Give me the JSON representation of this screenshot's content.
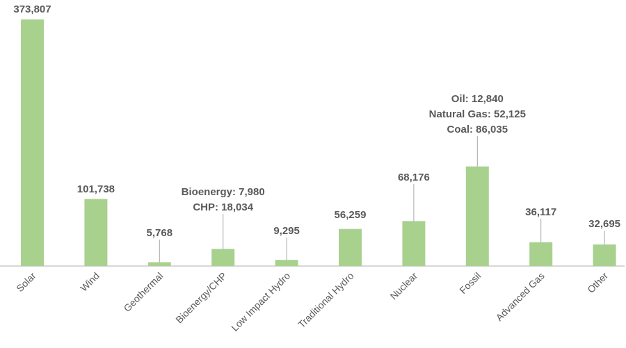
{
  "chart_data": {
    "type": "bar",
    "categories": [
      "Solar",
      "Wind",
      "Geothermal",
      "Bioenergy/CHP",
      "Low Impact Hydro",
      "Traditional Hydro",
      "Nuclear",
      "Fossil",
      "Advanced Gas",
      "Other"
    ],
    "values": [
      373807,
      101738,
      5768,
      26014,
      9295,
      56259,
      68176,
      151000,
      36117,
      32695
    ],
    "data_labels": [
      [
        "373,807"
      ],
      [
        "101,738"
      ],
      [
        "5,768"
      ],
      [
        "Bioenergy: 7,980",
        "CHP: 18,034"
      ],
      [
        "9,295"
      ],
      [
        "56,259"
      ],
      [
        "68,176"
      ],
      [
        "Oil: 12,840",
        "Natural Gas: 52,125",
        "Coal: 86,035"
      ],
      [
        "36,117"
      ],
      [
        "32,695"
      ]
    ],
    "title": "",
    "xlabel": "",
    "ylabel": "",
    "ylim": [
      0,
      380000
    ],
    "grid": false,
    "legend": "none",
    "bar_color": "#a9d18e",
    "axis_color": "#bfbfbf",
    "label_color": "#595959"
  }
}
